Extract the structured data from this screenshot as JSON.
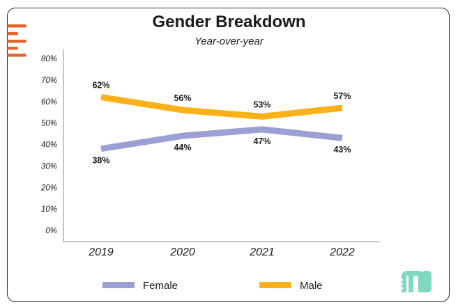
{
  "chart_data": {
    "type": "line",
    "title": "Gender Breakdown",
    "subtitle": "Year-over-year",
    "categories": [
      "2019",
      "2020",
      "2021",
      "2022"
    ],
    "ylim": [
      0,
      80
    ],
    "yticks": [
      "0%",
      "10%",
      "20%",
      "30%",
      "40%",
      "50%",
      "60%",
      "70%",
      "80%"
    ],
    "yticks_values": [
      0,
      10,
      20,
      30,
      40,
      50,
      60,
      70,
      80
    ],
    "grid": false,
    "legend_position": "bottom",
    "series": [
      {
        "name": "Female",
        "values": [
          38,
          44,
          47,
          43
        ],
        "labels": [
          "38%",
          "44%",
          "47%",
          "43%"
        ],
        "color": "#9b9fd3"
      },
      {
        "name": "Male",
        "values": [
          62,
          56,
          53,
          57
        ],
        "labels": [
          "62%",
          "56%",
          "53%",
          "57%"
        ],
        "color": "#fbb117"
      }
    ]
  },
  "brand": {
    "menu_icon": "hamburger-menu-icon",
    "menu_color": "#e8622b",
    "logo_icon": "m-logo-icon",
    "logo_color": "#7fd8c0"
  }
}
